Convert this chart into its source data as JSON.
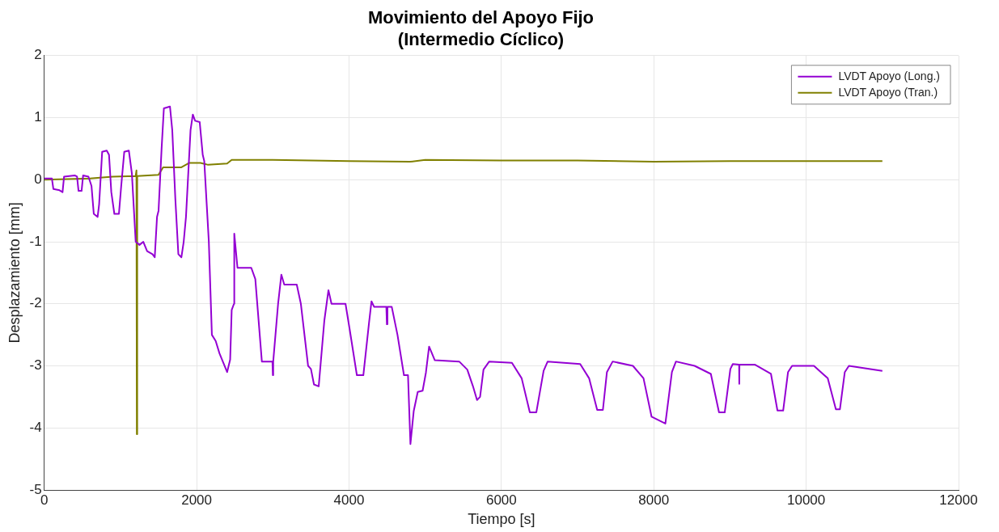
{
  "chart_data": {
    "type": "line",
    "title": "Movimiento del Apoyo Fijo\n(Intermedio Cíclico)",
    "xlabel": "Tiempo [s]",
    "ylabel": "Desplazamiento [mm]",
    "xlim": [
      0,
      12000
    ],
    "xticks": [
      0,
      2000,
      4000,
      6000,
      8000,
      10000,
      12000
    ],
    "ylim": [
      -5,
      2
    ],
    "yticks": [
      -5,
      -4,
      -3,
      -2,
      -1,
      0,
      1,
      2
    ],
    "grid": true,
    "legend": "top right",
    "marker": "none",
    "series": [
      {
        "name": "LVDT Apoyo (Long.)",
        "color": "#9400d3",
        "x": [
          0,
          100,
          120,
          200,
          240,
          260,
          400,
          430,
          450,
          490,
          510,
          580,
          620,
          650,
          700,
          720,
          760,
          820,
          850,
          880,
          920,
          980,
          1010,
          1050,
          1110,
          1150,
          1200,
          1250,
          1300,
          1350,
          1420,
          1450,
          1480,
          1500,
          1540,
          1570,
          1650,
          1680,
          1720,
          1760,
          1800,
          1830,
          1860,
          1920,
          1950,
          1980,
          2040,
          2080,
          2100,
          2160,
          2200,
          2250,
          2300,
          2350,
          2400,
          2440,
          2460,
          2490,
          2494,
          2536,
          2717,
          2770,
          2856,
          2995,
          3000,
          3005,
          3069,
          3112,
          3150,
          3314,
          3368,
          3463,
          3500,
          3540,
          3602,
          3676,
          3730,
          3770,
          3954,
          4007,
          4103,
          4188,
          4263,
          4295,
          4330,
          4490,
          4497,
          4504,
          4561,
          4636,
          4721,
          4774,
          4806,
          4849,
          4902,
          4966,
          5009,
          5051,
          5126,
          5446,
          5552,
          5627,
          5680,
          5720,
          5765,
          5840,
          6138,
          6266,
          6373,
          6458,
          6554,
          6607,
          7034,
          7151,
          7257,
          7332,
          7385,
          7460,
          7726,
          7865,
          7971,
          8152,
          8238,
          8291,
          8536,
          8749,
          8856,
          8931,
          9005,
          9037,
          9120,
          9122,
          9124,
          9325,
          9538,
          9623,
          9698,
          9762,
          9815,
          10102,
          10283,
          10390,
          10443,
          10507,
          10561,
          11000
        ],
        "values": [
          0.02,
          0.02,
          -0.15,
          -0.17,
          -0.2,
          0.05,
          0.07,
          0.05,
          -0.18,
          -0.18,
          0.07,
          0.05,
          -0.1,
          -0.55,
          -0.6,
          -0.4,
          0.45,
          0.47,
          0.4,
          -0.2,
          -0.55,
          -0.55,
          -0.1,
          0.45,
          0.47,
          0.1,
          -1.0,
          -1.05,
          -1.0,
          -1.15,
          -1.2,
          -1.25,
          -0.6,
          -0.5,
          0.5,
          1.15,
          1.18,
          0.8,
          -0.3,
          -1.2,
          -1.25,
          -1.0,
          -0.6,
          0.8,
          1.05,
          0.95,
          0.93,
          0.4,
          0.3,
          -1.0,
          -2.5,
          -2.6,
          -2.8,
          -2.95,
          -3.1,
          -2.9,
          -2.1,
          -2.0,
          -0.87,
          -1.42,
          -1.42,
          -1.6,
          -2.93,
          -2.93,
          -3.15,
          -2.93,
          -2.0,
          -1.53,
          -1.69,
          -1.69,
          -2.0,
          -3.0,
          -3.05,
          -3.3,
          -3.33,
          -2.27,
          -1.78,
          -2.0,
          -2.0,
          -2.4,
          -3.15,
          -3.15,
          -2.3,
          -1.96,
          -2.05,
          -2.05,
          -2.33,
          -2.05,
          -2.05,
          -2.5,
          -3.15,
          -3.15,
          -4.26,
          -3.73,
          -3.42,
          -3.4,
          -3.11,
          -2.69,
          -2.91,
          -2.93,
          -3.06,
          -3.33,
          -3.55,
          -3.5,
          -3.06,
          -2.93,
          -2.95,
          -3.2,
          -3.75,
          -3.75,
          -3.08,
          -2.93,
          -2.97,
          -3.2,
          -3.71,
          -3.71,
          -3.1,
          -2.93,
          -3.0,
          -3.2,
          -3.82,
          -3.93,
          -3.1,
          -2.93,
          -3.0,
          -3.13,
          -3.75,
          -3.75,
          -3.05,
          -2.97,
          -2.98,
          -3.29,
          -2.98,
          -2.98,
          -3.13,
          -3.72,
          -3.72,
          -3.1,
          -3.0,
          -3.0,
          -3.2,
          -3.7,
          -3.7,
          -3.1,
          -3.0,
          -3.08
        ]
      },
      {
        "name": "LVDT Apoyo (Tran.)",
        "color": "#808000",
        "x": [
          0,
          300,
          600,
          900,
          1200,
          1210,
          1215,
          1220,
          1500,
          1560,
          1800,
          1900,
          2050,
          2150,
          2400,
          2460,
          3000,
          4000,
          4800,
          5000,
          6000,
          7000,
          8000,
          9000,
          10000,
          11000
        ],
        "values": [
          0.0,
          0.01,
          0.02,
          0.05,
          0.06,
          0.15,
          -4.1,
          0.06,
          0.08,
          0.2,
          0.2,
          0.27,
          0.27,
          0.24,
          0.26,
          0.32,
          0.32,
          0.3,
          0.29,
          0.32,
          0.31,
          0.31,
          0.29,
          0.3,
          0.3,
          0.3
        ]
      }
    ]
  }
}
